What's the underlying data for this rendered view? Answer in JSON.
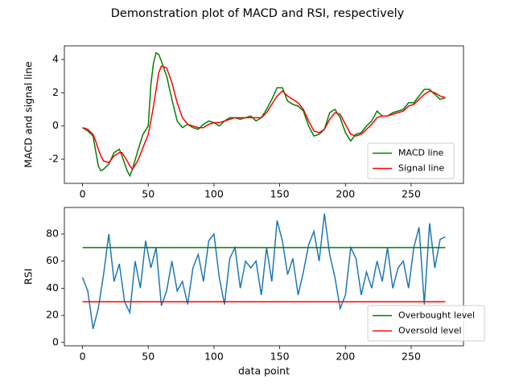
{
  "title": "Demonstration plot of MACD and RSI, respectively",
  "chart_data": [
    {
      "type": "line",
      "ylabel": "MACD and signal line",
      "xlim": [
        -13.8,
        289.8
      ],
      "xticks": [
        0,
        50,
        100,
        150,
        200,
        250
      ],
      "ylim": [
        -3.45,
        4.82
      ],
      "yticks": [
        -2,
        0,
        2,
        4
      ],
      "legend": "lower right",
      "series": [
        {
          "name": "MACD line",
          "color": "#008000",
          "x": [
            0,
            4,
            8,
            10,
            12,
            14,
            16,
            20,
            24,
            28,
            30,
            34,
            36,
            38,
            42,
            46,
            50,
            52,
            54,
            56,
            58,
            60,
            64,
            68,
            72,
            76,
            80,
            84,
            88,
            92,
            96,
            100,
            104,
            108,
            112,
            116,
            120,
            124,
            128,
            132,
            136,
            140,
            144,
            148,
            152,
            156,
            160,
            164,
            168,
            172,
            176,
            180,
            184,
            188,
            192,
            196,
            200,
            204,
            208,
            212,
            216,
            220,
            224,
            228,
            232,
            236,
            240,
            244,
            248,
            252,
            256,
            260,
            264,
            268,
            272,
            276
          ],
          "values": [
            -0.1,
            -0.3,
            -0.6,
            -1.5,
            -2.4,
            -2.7,
            -2.6,
            -2.3,
            -1.6,
            -1.4,
            -1.8,
            -2.7,
            -3.0,
            -2.6,
            -1.5,
            -0.5,
            0.0,
            2.5,
            3.8,
            4.4,
            4.3,
            3.9,
            3.0,
            1.6,
            0.3,
            -0.1,
            0.1,
            -0.1,
            -0.2,
            0.1,
            0.3,
            0.2,
            0.0,
            0.3,
            0.5,
            0.5,
            0.4,
            0.5,
            0.6,
            0.3,
            0.5,
            1.0,
            1.6,
            2.3,
            2.3,
            1.5,
            1.3,
            1.2,
            0.9,
            0.0,
            -0.6,
            -0.5,
            -0.2,
            0.8,
            1.0,
            0.5,
            -0.4,
            -0.9,
            -0.5,
            -0.4,
            0.0,
            0.3,
            0.9,
            0.6,
            0.6,
            0.8,
            0.9,
            1.0,
            1.4,
            1.4,
            1.8,
            2.2,
            2.2,
            1.9,
            1.6,
            1.7
          ]
        },
        {
          "name": "Signal line",
          "color": "#ff0000",
          "x": [
            0,
            4,
            8,
            10,
            12,
            14,
            16,
            20,
            24,
            28,
            30,
            34,
            36,
            38,
            42,
            46,
            50,
            52,
            54,
            56,
            58,
            60,
            64,
            68,
            72,
            76,
            80,
            84,
            88,
            92,
            96,
            100,
            104,
            108,
            112,
            116,
            120,
            124,
            128,
            132,
            136,
            140,
            144,
            148,
            152,
            156,
            160,
            164,
            168,
            172,
            176,
            180,
            184,
            188,
            192,
            196,
            200,
            204,
            208,
            212,
            216,
            220,
            224,
            228,
            232,
            236,
            240,
            244,
            248,
            252,
            256,
            260,
            264,
            268,
            272,
            276
          ],
          "values": [
            -0.1,
            -0.2,
            -0.5,
            -0.9,
            -1.4,
            -1.8,
            -2.1,
            -2.2,
            -1.8,
            -1.6,
            -1.6,
            -2.1,
            -2.4,
            -2.6,
            -2.1,
            -1.3,
            -0.5,
            0.3,
            1.2,
            2.2,
            3.2,
            3.6,
            3.5,
            2.6,
            1.4,
            0.5,
            0.1,
            0.0,
            -0.1,
            -0.1,
            0.1,
            0.2,
            0.2,
            0.3,
            0.4,
            0.5,
            0.5,
            0.5,
            0.5,
            0.5,
            0.5,
            0.8,
            1.3,
            1.8,
            2.1,
            1.8,
            1.6,
            1.4,
            1.0,
            0.3,
            -0.3,
            -0.4,
            -0.2,
            0.4,
            0.8,
            0.7,
            0.1,
            -0.5,
            -0.6,
            -0.5,
            -0.2,
            0.1,
            0.5,
            0.6,
            0.6,
            0.7,
            0.8,
            0.9,
            1.2,
            1.3,
            1.6,
            1.9,
            2.1,
            2.0,
            1.8,
            1.7
          ]
        }
      ]
    },
    {
      "type": "line",
      "ylabel": "RSI",
      "xlabel": "data point",
      "xlim": [
        -13.8,
        289.8
      ],
      "xticks": [
        0,
        50,
        100,
        150,
        200,
        250
      ],
      "ylim": [
        -2.5,
        99.6
      ],
      "yticks": [
        0,
        20,
        40,
        60,
        80
      ],
      "legend": "lower right",
      "series": [
        {
          "color": "#1f77b4",
          "x": [
            0,
            4,
            8,
            12,
            16,
            20,
            24,
            28,
            32,
            36,
            40,
            44,
            48,
            52,
            56,
            60,
            64,
            68,
            72,
            76,
            80,
            84,
            88,
            92,
            96,
            100,
            104,
            108,
            112,
            116,
            120,
            124,
            128,
            132,
            136,
            140,
            144,
            148,
            152,
            156,
            160,
            164,
            168,
            172,
            176,
            180,
            184,
            188,
            192,
            196,
            200,
            204,
            208,
            212,
            216,
            220,
            224,
            228,
            232,
            236,
            240,
            244,
            248,
            252,
            256,
            260,
            264,
            268,
            272,
            276
          ],
          "values": [
            48,
            38,
            10,
            25,
            50,
            80,
            45,
            58,
            30,
            22,
            60,
            40,
            75,
            55,
            70,
            27,
            38,
            60,
            38,
            45,
            28,
            55,
            65,
            45,
            75,
            80,
            48,
            28,
            62,
            70,
            40,
            60,
            55,
            60,
            35,
            70,
            45,
            90,
            75,
            50,
            62,
            35,
            52,
            72,
            82,
            60,
            95,
            65,
            48,
            25,
            35,
            70,
            62,
            35,
            52,
            40,
            60,
            45,
            70,
            40,
            55,
            60,
            40,
            70,
            85,
            28,
            88,
            55,
            76,
            78
          ]
        },
        {
          "name": "Overbought level",
          "color": "#008000",
          "x": [
            0,
            276
          ],
          "values": [
            70,
            70
          ]
        },
        {
          "name": "Oversold level",
          "color": "#ff0000",
          "x": [
            0,
            276
          ],
          "values": [
            30,
            30
          ]
        }
      ]
    }
  ]
}
